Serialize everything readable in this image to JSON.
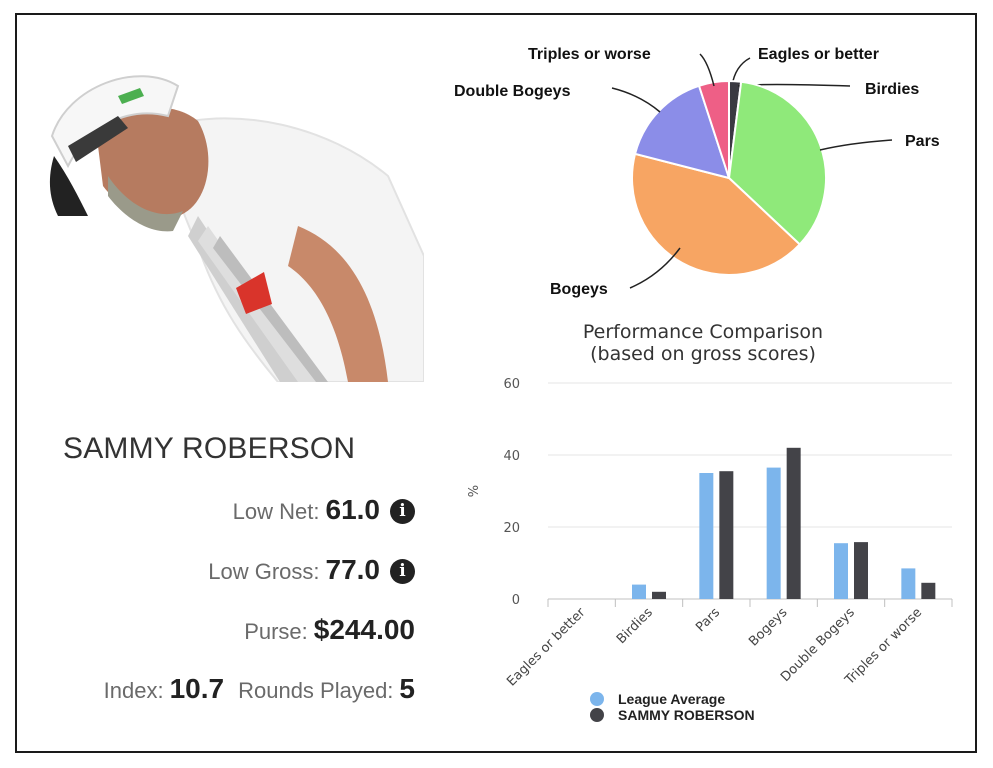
{
  "player": {
    "name": "SAMMY ROBERSON",
    "low_net_label": "Low Net:",
    "low_net_value": "61.0",
    "low_gross_label": "Low Gross:",
    "low_gross_value": "77.0",
    "purse_label": "Purse:",
    "purse_value": "$244.00",
    "index_label": "Index:",
    "index_value": "10.7",
    "rounds_label": "Rounds Played:",
    "rounds_value": "5"
  },
  "icons": {
    "info": "info-circle-icon",
    "photo": "golfer-photo"
  },
  "chart_data": [
    {
      "type": "pie",
      "title": "",
      "categories": [
        "Eagles or better",
        "Birdies",
        "Pars",
        "Bogeys",
        "Double Bogeys",
        "Triples or worse"
      ],
      "values": [
        0,
        2,
        35,
        42,
        16,
        5
      ],
      "colors": [
        "#f5d36b",
        "#3a3a42",
        "#8fe97a",
        "#f7a563",
        "#8b8de8",
        "#ee5f86"
      ]
    },
    {
      "type": "bar",
      "title": "Performance Comparison",
      "subtitle": "(based on gross scores)",
      "xlabel": "",
      "ylabel": "%",
      "ylim": [
        0,
        60
      ],
      "yticks": [
        "0",
        "20",
        "40",
        "60"
      ],
      "grid": true,
      "legend_position": "bottom",
      "categories": [
        "Eagles or better",
        "Birdies",
        "Pars",
        "Bogeys",
        "Double Bogeys",
        "Triples or worse"
      ],
      "series": [
        {
          "name": "League Average",
          "color": "#7cb5ec",
          "values": [
            0,
            4,
            35,
            36.5,
            15.5,
            8.5
          ]
        },
        {
          "name": "SAMMY ROBERSON",
          "color": "#434348",
          "values": [
            0,
            2,
            35.5,
            42,
            15.8,
            4.5
          ]
        }
      ]
    }
  ]
}
